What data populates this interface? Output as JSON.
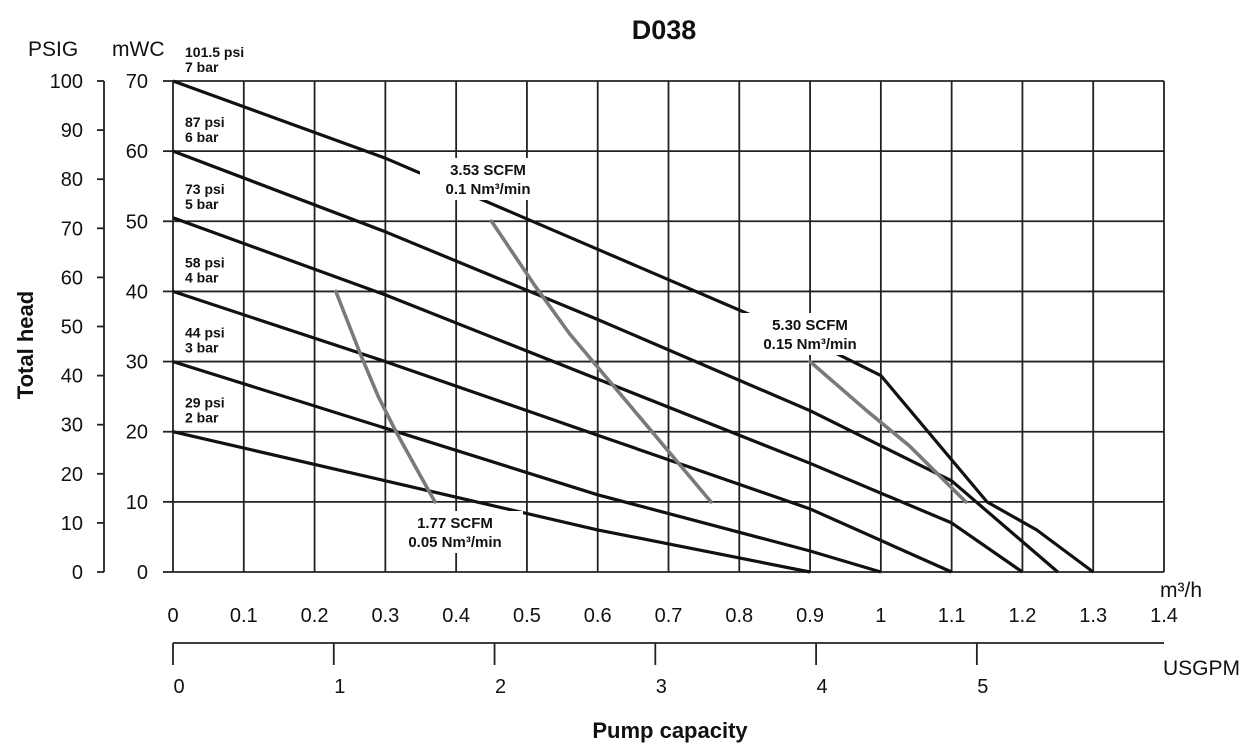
{
  "chart_data": {
    "type": "line",
    "title": "D038",
    "ylabel": "Total head",
    "xlabel": "Pump capacity",
    "x_unit": "m³/h",
    "x2_unit": "USGPM",
    "y_unit_psig": "PSIG",
    "y_unit_mwc": "mWC",
    "xlim": [
      0,
      1.4
    ],
    "ylim_mwc": [
      0,
      70
    ],
    "ylim_psig": [
      0,
      100
    ],
    "x_ticks": [
      "0",
      "0.1",
      "0.2",
      "0.3",
      "0.4",
      "0.5",
      "0.6",
      "0.7",
      "0.8",
      "0.9",
      "1",
      "1.1",
      "1.2",
      "1.3",
      "1.4"
    ],
    "x2_ticks": [
      "0",
      "1",
      "2",
      "3",
      "4",
      "5"
    ],
    "y_mwc_ticks": [
      "0",
      "10",
      "20",
      "30",
      "40",
      "50",
      "60",
      "70"
    ],
    "y_psig_ticks": [
      "0",
      "10",
      "20",
      "30",
      "40",
      "50",
      "60",
      "70",
      "80",
      "90",
      "100"
    ],
    "grid": true,
    "series": [
      {
        "name_psi": "101.5 psi",
        "name_bar": "7 bar",
        "x": [
          0,
          0.3,
          0.6,
          0.9,
          1.0,
          1.15,
          1.22,
          1.3
        ],
        "y": [
          70,
          59,
          46,
          33,
          28,
          10,
          6,
          0
        ]
      },
      {
        "name_psi": "87 psi",
        "name_bar": "6 bar",
        "x": [
          0,
          0.3,
          0.6,
          0.9,
          1.1,
          1.25
        ],
        "y": [
          60,
          48.5,
          36,
          23,
          13,
          0
        ]
      },
      {
        "name_psi": "73 psi",
        "name_bar": "5 bar",
        "x": [
          0,
          0.3,
          0.6,
          0.9,
          1.1,
          1.2
        ],
        "y": [
          50.5,
          39.5,
          27.5,
          15.5,
          7,
          0
        ]
      },
      {
        "name_psi": "58 psi",
        "name_bar": "4 bar",
        "x": [
          0,
          0.3,
          0.6,
          0.9,
          1.1
        ],
        "y": [
          40,
          30,
          19.5,
          9,
          0
        ]
      },
      {
        "name_psi": "44 psi",
        "name_bar": "3 bar",
        "x": [
          0,
          0.3,
          0.6,
          0.9,
          1.0
        ],
        "y": [
          30,
          20.5,
          11,
          3,
          0
        ]
      },
      {
        "name_psi": "29 psi",
        "name_bar": "2 bar",
        "x": [
          0,
          0.3,
          0.6,
          0.9
        ],
        "y": [
          20,
          13,
          6,
          0
        ]
      }
    ],
    "air_curves": [
      {
        "label_scfm": "1.77 SCFM",
        "label_nm3": "0.05 Nm³/min",
        "x": [
          0.23,
          0.265,
          0.29,
          0.315,
          0.37
        ],
        "y": [
          40,
          31,
          25,
          20,
          10
        ]
      },
      {
        "label_scfm": "3.53 SCFM",
        "label_nm3": "0.1 Nm³/min",
        "x": [
          0.45,
          0.51,
          0.56,
          0.61,
          0.66,
          0.76
        ],
        "y": [
          50,
          41,
          34,
          28,
          22,
          10
        ]
      },
      {
        "label_scfm": "5.30 SCFM",
        "label_nm3": "0.15 Nm³/min",
        "x": [
          0.9,
          0.98,
          1.04,
          1.12
        ],
        "y": [
          30,
          23,
          18,
          10
        ]
      }
    ]
  }
}
